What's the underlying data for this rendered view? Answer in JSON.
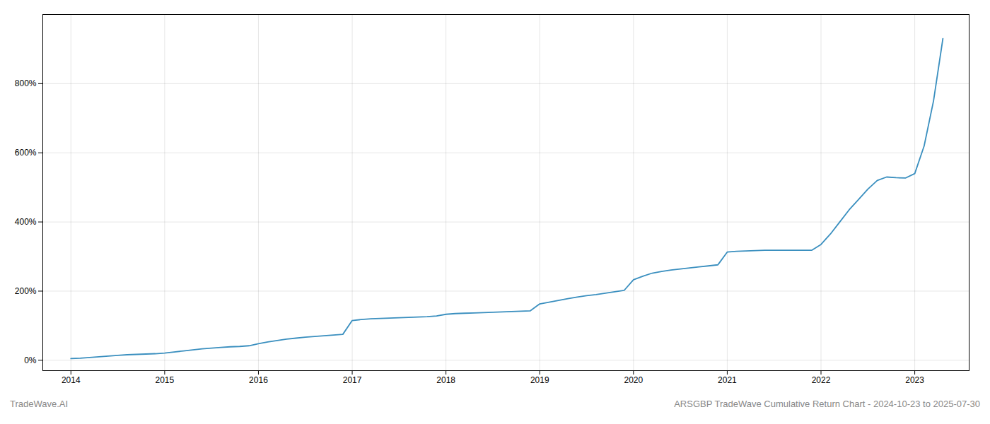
{
  "chart_data": {
    "type": "line",
    "color": "#3a8fbf",
    "grid": true,
    "annotations": [
      "TradeWave.AI",
      "ARSGBP TradeWave Cumulative Return Chart - 2024-10-23 to 2025-07-30"
    ],
    "x": [
      2014.0,
      2014.1,
      2014.2,
      2014.3,
      2014.4,
      2014.5,
      2014.6,
      2014.7,
      2014.8,
      2014.9,
      2015.0,
      2015.1,
      2015.2,
      2015.3,
      2015.4,
      2015.5,
      2015.6,
      2015.7,
      2015.8,
      2015.9,
      2016.0,
      2016.1,
      2016.2,
      2016.3,
      2016.4,
      2016.5,
      2016.6,
      2016.7,
      2016.8,
      2016.9,
      2017.0,
      2017.1,
      2017.2,
      2017.3,
      2017.4,
      2017.5,
      2017.6,
      2017.7,
      2017.8,
      2017.9,
      2018.0,
      2018.1,
      2018.2,
      2018.3,
      2018.4,
      2018.5,
      2018.6,
      2018.7,
      2018.8,
      2018.9,
      2019.0,
      2019.1,
      2019.2,
      2019.3,
      2019.4,
      2019.5,
      2019.6,
      2019.7,
      2019.8,
      2019.9,
      2020.0,
      2020.1,
      2020.2,
      2020.3,
      2020.4,
      2020.5,
      2020.6,
      2020.7,
      2020.8,
      2020.9,
      2021.0,
      2021.1,
      2021.2,
      2021.3,
      2021.4,
      2021.5,
      2021.6,
      2021.7,
      2021.8,
      2021.9,
      2022.0,
      2022.1,
      2022.2,
      2022.3,
      2022.4,
      2022.5,
      2022.6,
      2022.7,
      2022.8,
      2022.9,
      2023.0,
      2023.1,
      2023.2,
      2023.3
    ],
    "values": [
      5,
      6,
      8,
      10,
      12,
      14,
      16,
      17,
      18,
      19,
      21,
      24,
      27,
      30,
      33,
      35,
      37,
      39,
      40,
      42,
      48,
      53,
      57,
      61,
      64,
      67,
      69,
      71,
      73,
      75,
      115,
      118,
      120,
      121,
      122,
      123,
      124,
      125,
      126,
      128,
      133,
      135,
      136,
      137,
      138,
      139,
      140,
      141,
      142,
      143,
      163,
      168,
      173,
      178,
      183,
      187,
      190,
      194,
      198,
      202,
      233,
      243,
      252,
      257,
      261,
      264,
      267,
      270,
      273,
      276,
      313,
      315,
      316,
      317,
      318,
      318,
      318,
      318,
      318,
      318,
      335,
      365,
      400,
      435,
      465,
      495,
      520,
      530,
      528,
      527,
      540,
      620,
      750,
      930
    ],
    "xlim": [
      2013.7,
      2023.58
    ],
    "xticks": [
      2014,
      2015,
      2016,
      2017,
      2018,
      2019,
      2020,
      2021,
      2022,
      2023
    ],
    "ylim": [
      -30,
      1000
    ],
    "yticks": [
      {
        "value": 0,
        "label": "0%"
      },
      {
        "value": 200,
        "label": "200%"
      },
      {
        "value": 400,
        "label": "400%"
      },
      {
        "value": 600,
        "label": "600%"
      },
      {
        "value": 800,
        "label": "800%"
      }
    ]
  }
}
